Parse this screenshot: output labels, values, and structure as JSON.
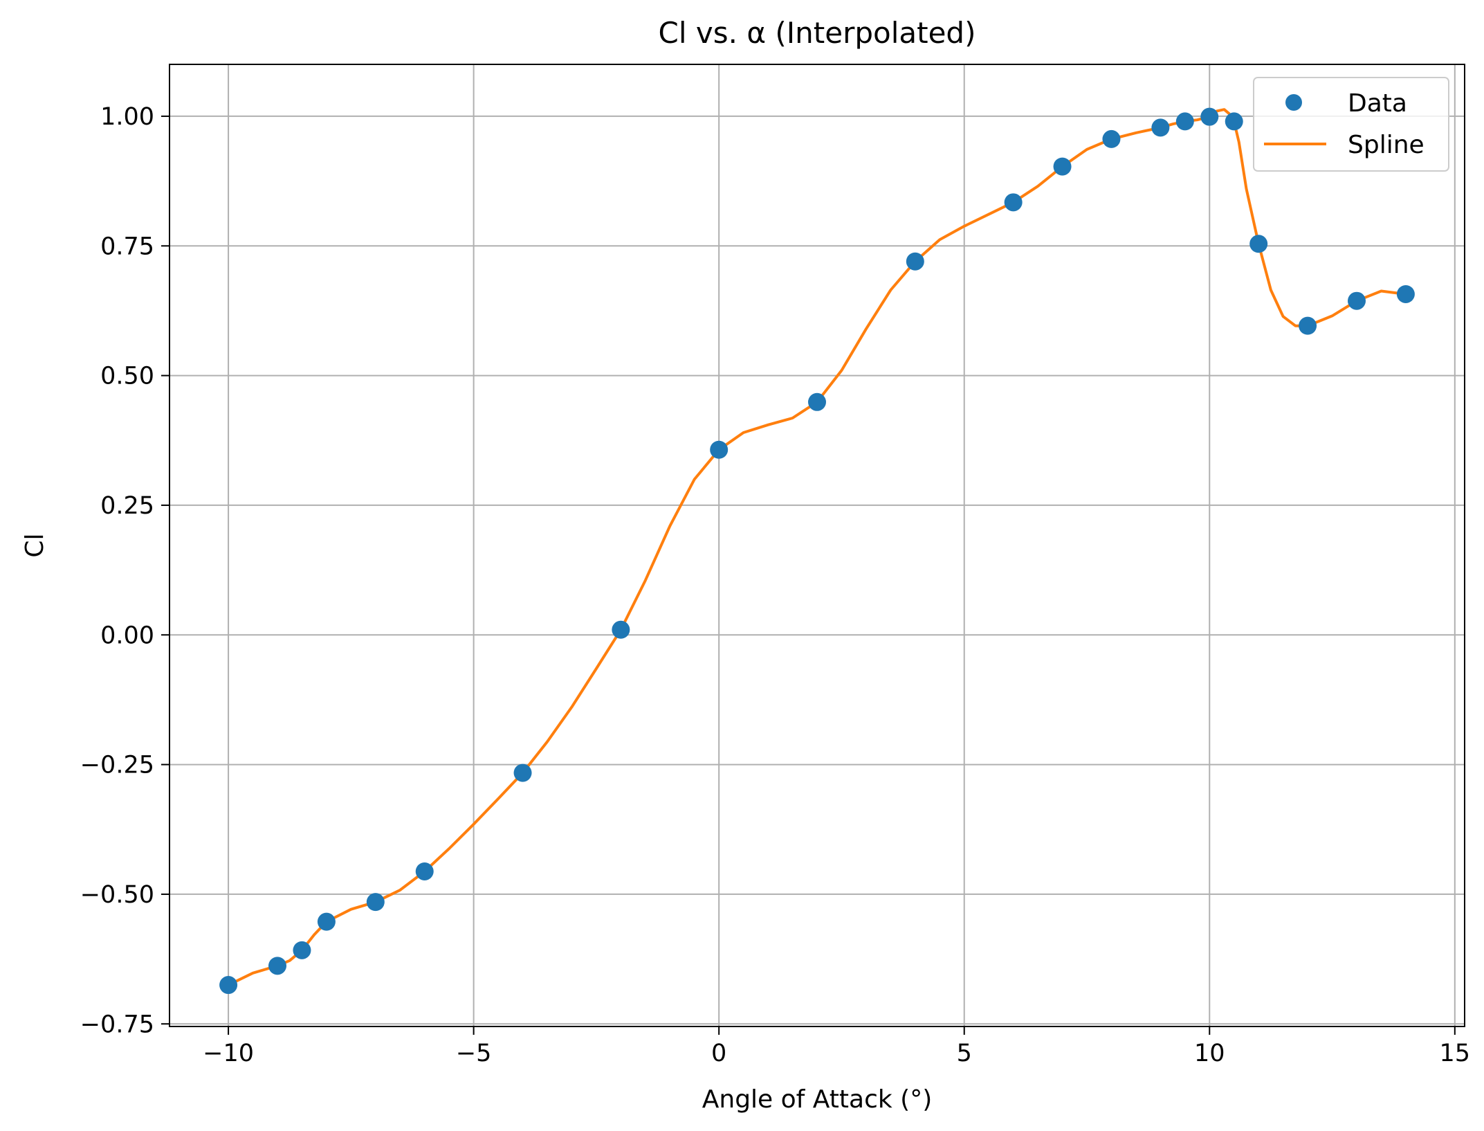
{
  "chart_data": {
    "type": "line",
    "title": "Cl vs. α (Interpolated)",
    "xlabel": "Angle of Attack (°)",
    "ylabel": "Cl",
    "xlim": [
      -11.2,
      15.2
    ],
    "ylim": [
      -0.755,
      1.1
    ],
    "xticks": [
      -10,
      -5,
      0,
      5,
      10,
      15
    ],
    "xtick_labels": [
      "−10",
      "−5",
      "0",
      "5",
      "10",
      "15"
    ],
    "yticks": [
      -0.75,
      -0.5,
      -0.25,
      0.0,
      0.25,
      0.5,
      0.75,
      1.0
    ],
    "ytick_labels": [
      "−0.75",
      "−0.50",
      "−0.25",
      "0.00",
      "0.25",
      "0.50",
      "0.75",
      "1.00"
    ],
    "grid": true,
    "legend_position": "top-right",
    "series": [
      {
        "name": "Data",
        "kind": "scatter",
        "color": "#1f77b4",
        "points": [
          [
            -10,
            -0.675
          ],
          [
            -9,
            -0.638
          ],
          [
            -8.5,
            -0.608
          ],
          [
            -8,
            -0.553
          ],
          [
            -7,
            -0.515
          ],
          [
            -6,
            -0.456
          ],
          [
            -4,
            -0.266
          ],
          [
            -2,
            0.01
          ],
          [
            0,
            0.357
          ],
          [
            2,
            0.449
          ],
          [
            4,
            0.72
          ],
          [
            6,
            0.834
          ],
          [
            7,
            0.903
          ],
          [
            8,
            0.956
          ],
          [
            9,
            0.978
          ],
          [
            9.5,
            0.99
          ],
          [
            10,
            0.999
          ],
          [
            10.5,
            0.99
          ],
          [
            11,
            0.754
          ],
          [
            12,
            0.596
          ],
          [
            13,
            0.644
          ],
          [
            14,
            0.657
          ]
        ]
      },
      {
        "name": "Spline",
        "kind": "line",
        "color": "#ff7f0e",
        "points": [
          [
            -10,
            -0.675
          ],
          [
            -9.5,
            -0.652
          ],
          [
            -9,
            -0.638
          ],
          [
            -8.75,
            -0.628
          ],
          [
            -8.5,
            -0.608
          ],
          [
            -8.25,
            -0.578
          ],
          [
            -8,
            -0.553
          ],
          [
            -7.5,
            -0.529
          ],
          [
            -7,
            -0.515
          ],
          [
            -6.5,
            -0.492
          ],
          [
            -6,
            -0.456
          ],
          [
            -5.5,
            -0.412
          ],
          [
            -5,
            -0.365
          ],
          [
            -4.5,
            -0.316
          ],
          [
            -4,
            -0.266
          ],
          [
            -3.5,
            -0.206
          ],
          [
            -3,
            -0.139
          ],
          [
            -2.5,
            -0.065
          ],
          [
            -2,
            0.01
          ],
          [
            -1.5,
            0.105
          ],
          [
            -1,
            0.21
          ],
          [
            -0.5,
            0.3
          ],
          [
            0,
            0.357
          ],
          [
            0.5,
            0.39
          ],
          [
            1,
            0.405
          ],
          [
            1.5,
            0.418
          ],
          [
            2,
            0.449
          ],
          [
            2.5,
            0.51
          ],
          [
            3,
            0.59
          ],
          [
            3.5,
            0.665
          ],
          [
            4,
            0.72
          ],
          [
            4.5,
            0.762
          ],
          [
            5,
            0.788
          ],
          [
            5.5,
            0.811
          ],
          [
            6,
            0.834
          ],
          [
            6.5,
            0.865
          ],
          [
            7,
            0.903
          ],
          [
            7.5,
            0.936
          ],
          [
            8,
            0.956
          ],
          [
            8.5,
            0.968
          ],
          [
            9,
            0.978
          ],
          [
            9.25,
            0.985
          ],
          [
            9.5,
            0.99
          ],
          [
            9.75,
            0.993
          ],
          [
            10,
            0.999
          ],
          [
            10.15,
            1.01
          ],
          [
            10.3,
            1.013
          ],
          [
            10.4,
            1.005
          ],
          [
            10.5,
            0.99
          ],
          [
            10.6,
            0.95
          ],
          [
            10.75,
            0.86
          ],
          [
            11,
            0.754
          ],
          [
            11.25,
            0.665
          ],
          [
            11.5,
            0.614
          ],
          [
            11.75,
            0.596
          ],
          [
            12,
            0.596
          ],
          [
            12.5,
            0.615
          ],
          [
            13,
            0.644
          ],
          [
            13.5,
            0.663
          ],
          [
            14,
            0.657
          ]
        ]
      }
    ]
  }
}
